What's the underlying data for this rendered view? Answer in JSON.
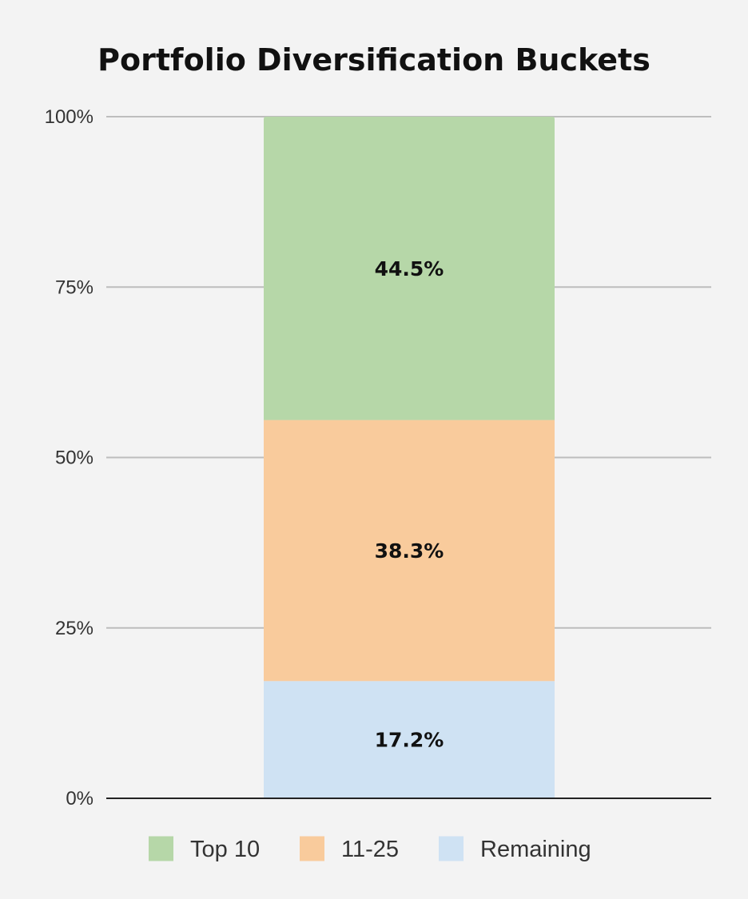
{
  "chart_data": {
    "type": "bar",
    "stacked": true,
    "normalized": true,
    "title": "Portfolio Diversification Buckets",
    "xlabel": "",
    "ylabel": "",
    "categories": [
      ""
    ],
    "series": [
      {
        "name": "Remaining",
        "values": [
          17.2
        ],
        "label": "17.2%",
        "color": "#cfe2f3"
      },
      {
        "name": "11-25",
        "values": [
          38.3
        ],
        "label": "38.3%",
        "color": "#f9cb9c"
      },
      {
        "name": "Top 10",
        "values": [
          44.5
        ],
        "label": "44.5%",
        "color": "#b6d7a8"
      }
    ],
    "ylim": [
      0,
      100
    ],
    "yticks": [
      {
        "value": 0,
        "label": "0%"
      },
      {
        "value": 25,
        "label": "25%"
      },
      {
        "value": 50,
        "label": "50%"
      },
      {
        "value": 75,
        "label": "75%"
      },
      {
        "value": 100,
        "label": "100%"
      }
    ],
    "legend": {
      "position": "bottom",
      "entries": [
        {
          "name": "Top 10",
          "color": "#b6d7a8"
        },
        {
          "name": "11-25",
          "color": "#f9cb9c"
        },
        {
          "name": "Remaining",
          "color": "#cfe2f3"
        }
      ]
    },
    "grid": true,
    "colors": {
      "background": "#f3f3f3",
      "gridline": "#bdbdbd",
      "axis": "#222222"
    }
  }
}
